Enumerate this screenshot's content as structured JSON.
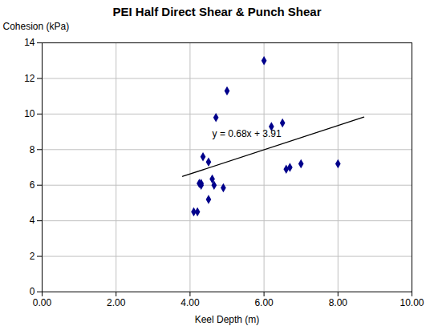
{
  "chart_data": {
    "type": "scatter",
    "title": "PEI Half Direct Shear & Punch Shear",
    "x_label": "Keel Depth (m)",
    "y_label": "Cohesion (kPa)",
    "xlim": [
      0.0,
      10.0
    ],
    "ylim": [
      0,
      14
    ],
    "xticks": [
      {
        "value": 0.0,
        "label": "0.00"
      },
      {
        "value": 2.0,
        "label": "2.00"
      },
      {
        "value": 4.0,
        "label": "4.00"
      },
      {
        "value": 6.0,
        "label": "6.00"
      },
      {
        "value": 8.0,
        "label": "8.00"
      },
      {
        "value": 10.0,
        "label": "10.00"
      }
    ],
    "yticks": [
      0,
      2,
      4,
      6,
      8,
      10,
      12,
      14
    ],
    "x": [
      4.1,
      4.2,
      4.25,
      4.3,
      4.3,
      4.35,
      4.5,
      4.5,
      4.6,
      4.65,
      4.7,
      4.9,
      5.0,
      6.0,
      6.2,
      6.5,
      6.6,
      6.7,
      7.0,
      8.0
    ],
    "values": [
      4.5,
      4.5,
      6.1,
      6.0,
      6.1,
      7.6,
      5.2,
      7.3,
      6.35,
      6.0,
      9.8,
      5.85,
      11.3,
      13.0,
      9.3,
      9.5,
      6.9,
      7.0,
      7.2,
      7.2
    ],
    "color": "#00008B",
    "marker": "diamond",
    "trend_line": {
      "x": [
        3.8,
        8.7
      ],
      "values": [
        6.494,
        9.826
      ],
      "color": "#000000"
    },
    "annotations": [
      {
        "text": "y = 0.68x + 3.91",
        "x": 4.6,
        "y": 8.7,
        "color": "#000000"
      }
    ],
    "grid": true
  }
}
